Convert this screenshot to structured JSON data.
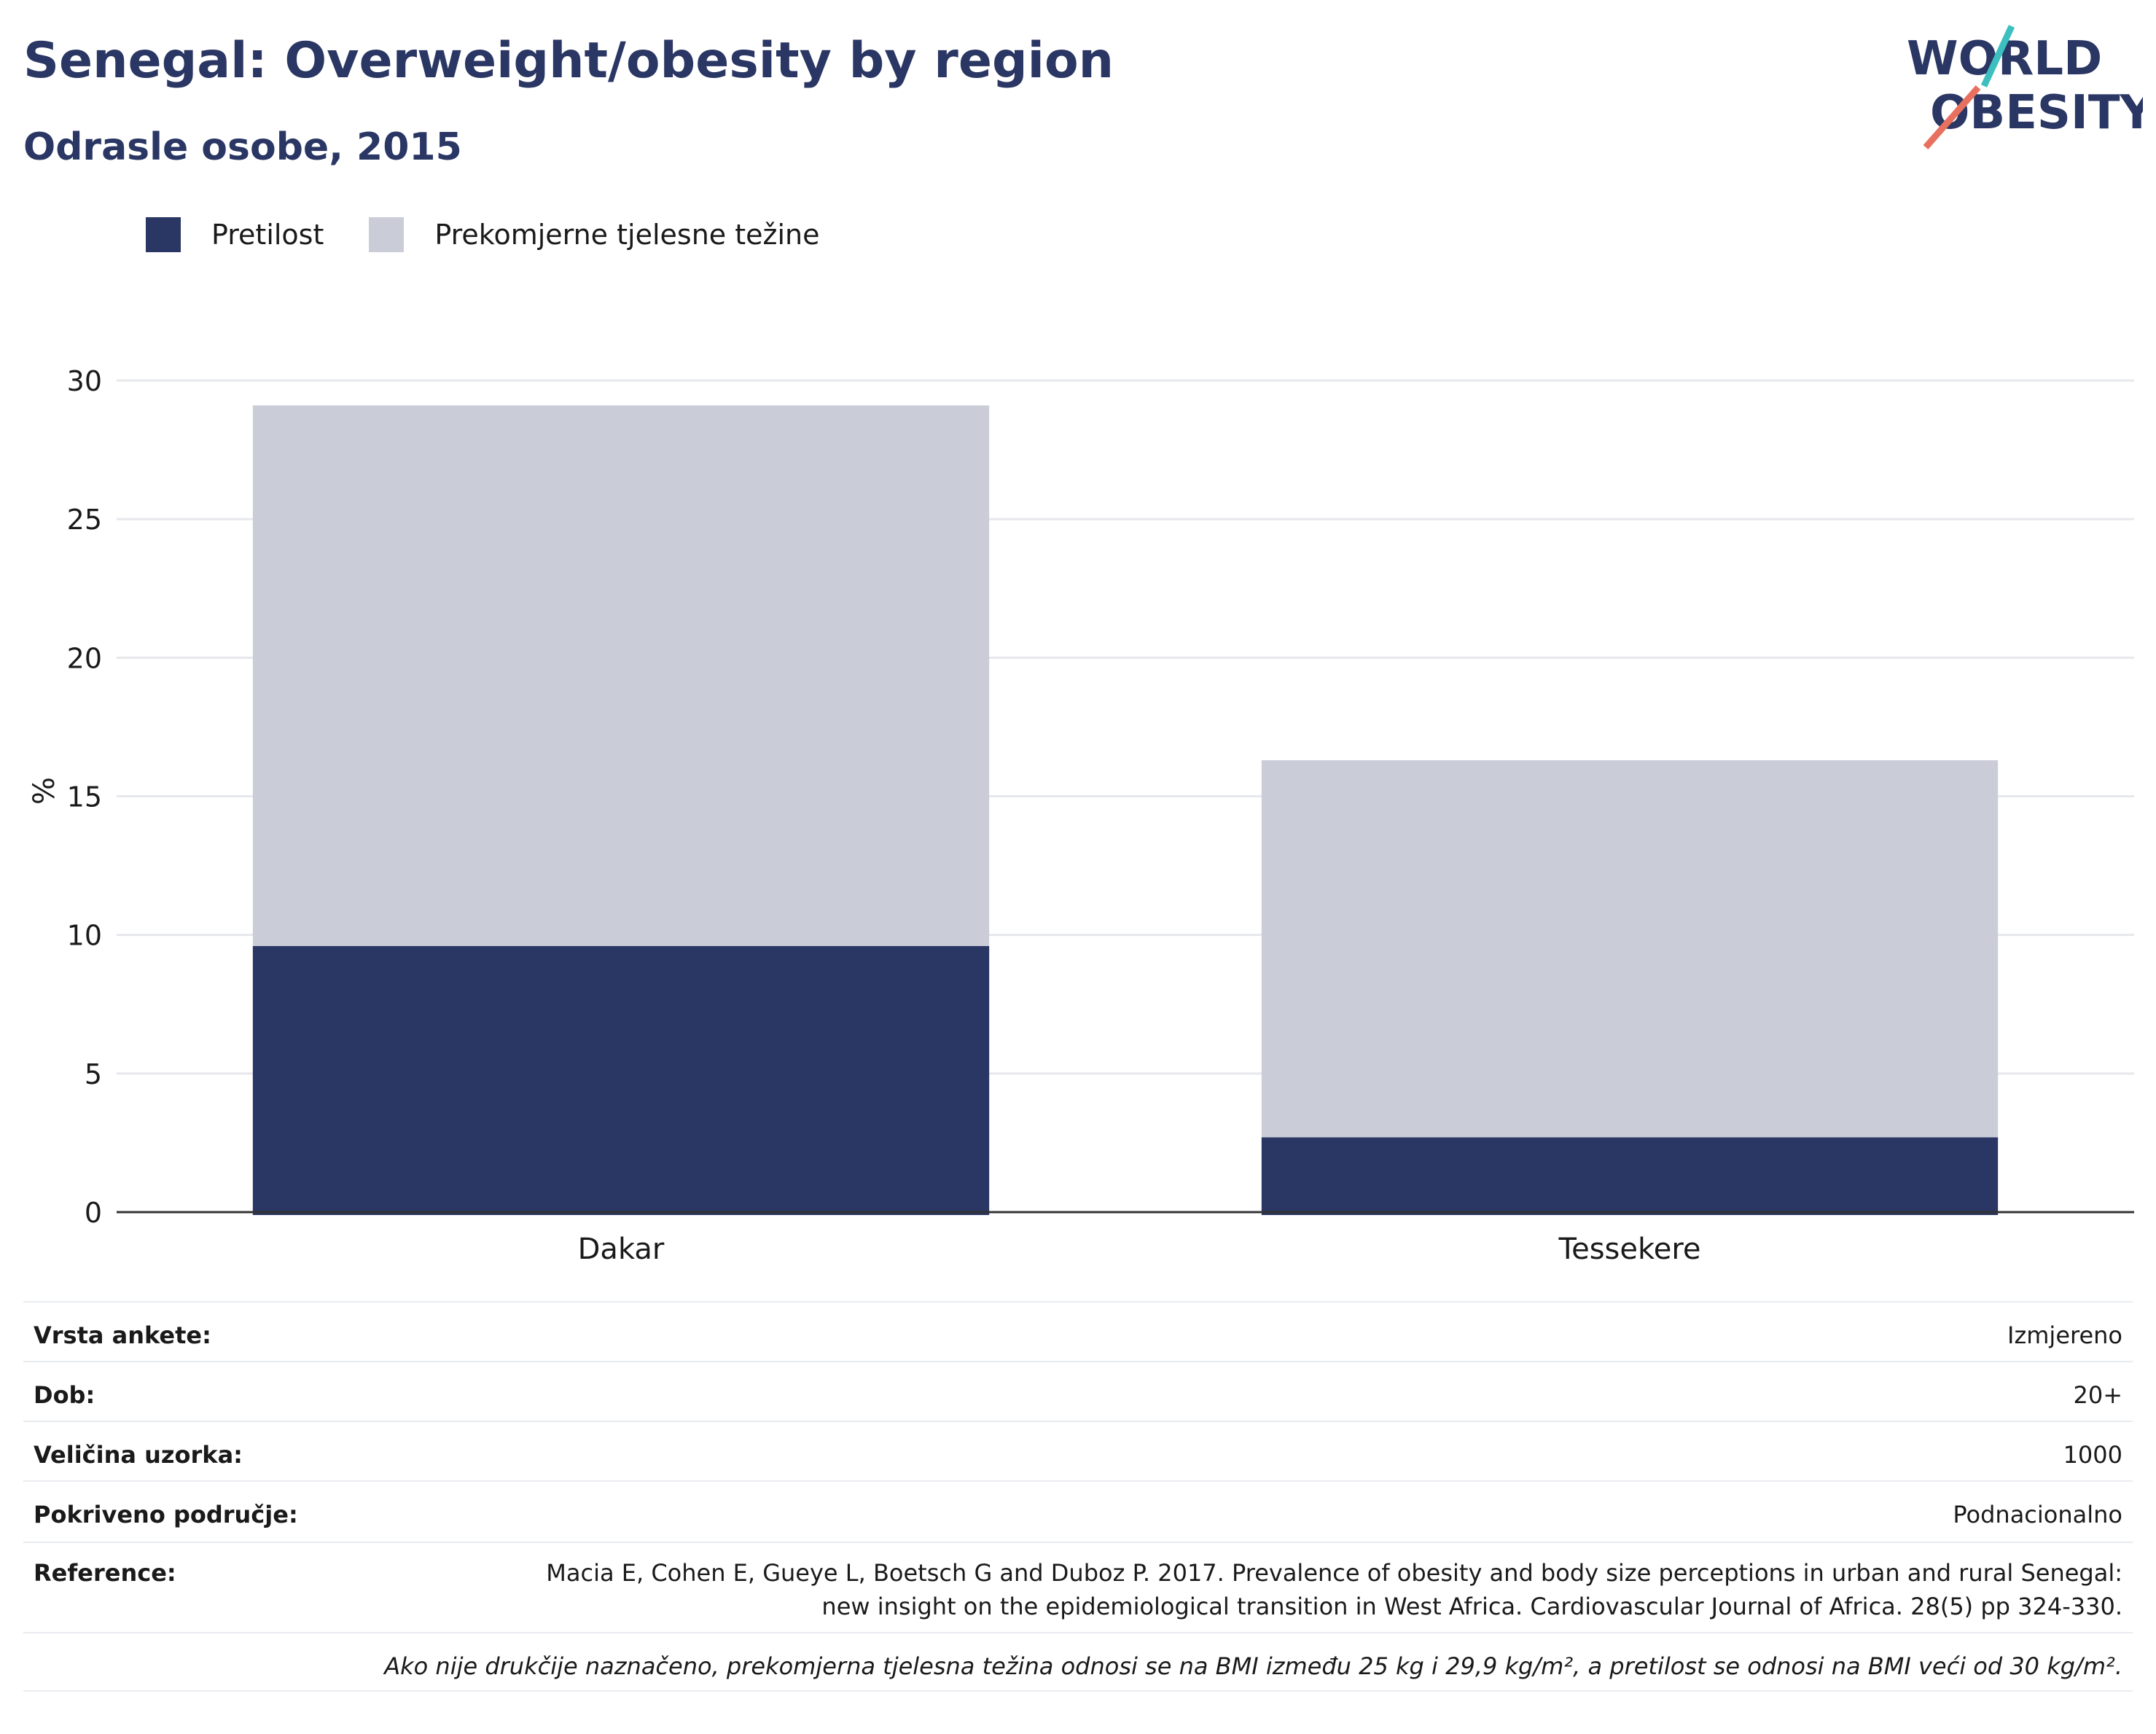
{
  "header": {
    "title": "Senegal: Overweight/obesity by region",
    "subtitle": "Odrasle osobe, 2015"
  },
  "logo": {
    "line1": "WORLD",
    "line2": "OBESITY",
    "accent_teal": "#3dbfbf",
    "accent_coral": "#e8705e"
  },
  "colors": {
    "obesity": "#2a3663",
    "overweight": "#cacdd8",
    "text": "#2a3663",
    "grid": "#e6e8ec",
    "axis": "#333333"
  },
  "legend": [
    {
      "label": "Pretilost",
      "color": "#2a3663"
    },
    {
      "label": "Prekomjerne tjelesne težine",
      "color": "#cacdd8"
    }
  ],
  "chart_data": {
    "type": "bar",
    "stacked": true,
    "categories": [
      "Dakar",
      "Tessekere"
    ],
    "series": [
      {
        "name": "Pretilost",
        "values": [
          9.6,
          2.7
        ],
        "color": "#2a3663"
      },
      {
        "name": "Prekomjerne tjelesne težine",
        "values": [
          19.5,
          13.6
        ],
        "color": "#cacdd8"
      }
    ],
    "ylabel": "%",
    "ylim": [
      0,
      30
    ],
    "yticks": [
      0,
      5,
      10,
      15,
      20,
      25,
      30
    ],
    "grid": true,
    "legend_position": "top-left"
  },
  "info": {
    "survey_type": {
      "label": "Vrsta ankete:",
      "value": "Izmjereno"
    },
    "age": {
      "label": "Dob:",
      "value": "20+"
    },
    "sample_size": {
      "label": "Veličina uzorka:",
      "value": "1000"
    },
    "coverage": {
      "label": "Pokriveno područje:",
      "value": "Podnacionalno"
    },
    "reference": {
      "label": "Reference:",
      "line1": "Macia E, Cohen E, Gueye L, Boetsch G and Duboz P. 2017. Prevalence of obesity and body size perceptions in urban and rural Senegal:",
      "line2": "new insight on the epidemiological transition in West Africa. Cardiovascular Journal of Africa. 28(5) pp 324-330."
    },
    "footnote": "Ako nije drukčije naznačeno, prekomjerna tjelesna težina odnosi se na BMI između 25 kg i 29,9 kg/m², a pretilost se odnosi na BMI veći od 30 kg/m²."
  }
}
